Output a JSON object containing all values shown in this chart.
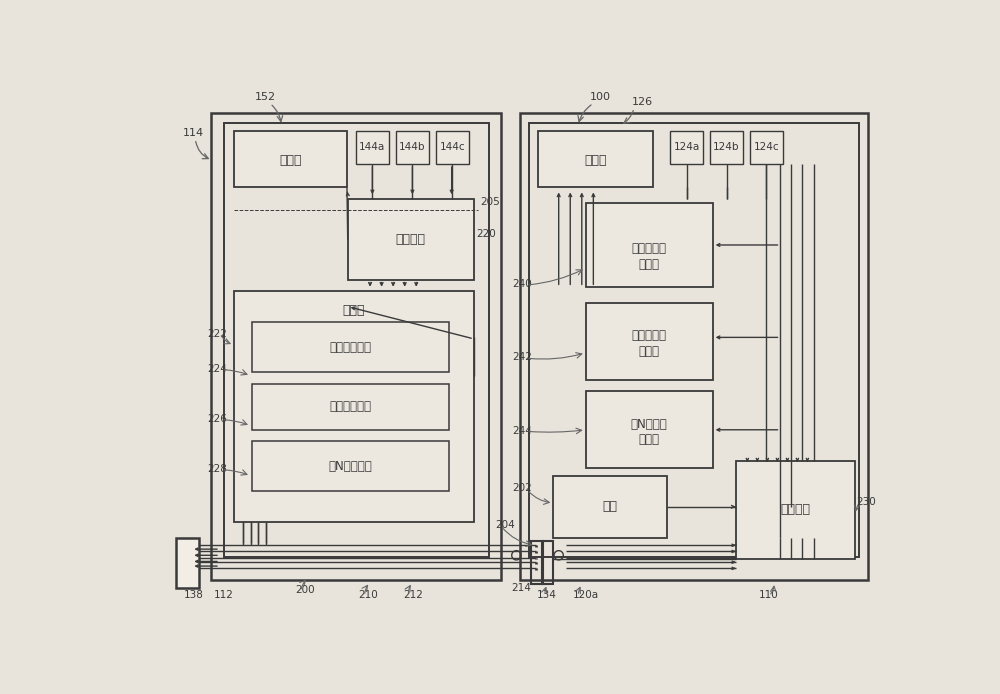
{
  "bg_color": "#e8e4dc",
  "line_color": "#3a3a3a",
  "box_fill": "#ece8e0",
  "box_fill_light": "#f2ede5",
  "labels": {
    "display_left": "显示屏",
    "microprocessor": "微处理器",
    "memory": "存储器",
    "op1": "第一操作状态",
    "op2": "第二操作状态",
    "opN": "第N操作状态",
    "display_right": "显示屏",
    "data1_line1": "第一数据处",
    "data1_line2": "理模块",
    "data2_line1": "第二数据处",
    "data2_line2": "理模块",
    "dataN_line1": "第N数据处",
    "dataN_line2": "理模块",
    "power": "电源",
    "control": "控制模块",
    "s144a": "144a",
    "s144b": "144b",
    "s144c": "144c",
    "s124a": "124a",
    "s124b": "124b",
    "s124c": "124c",
    "r100": "100",
    "r114": "114",
    "r152": "152",
    "r126": "126",
    "r205": "205",
    "r220": "220",
    "r222": "222",
    "r224": "224",
    "r226": "226",
    "r228": "228",
    "r240": "240",
    "r242": "242",
    "r244": "244",
    "r202": "202",
    "r230": "230",
    "r138": "138",
    "r112": "112",
    "r200": "200",
    "r210": "210",
    "r212": "212",
    "r214": "214",
    "r134": "134",
    "r120a": "120a",
    "r110": "110",
    "r204": "204"
  }
}
